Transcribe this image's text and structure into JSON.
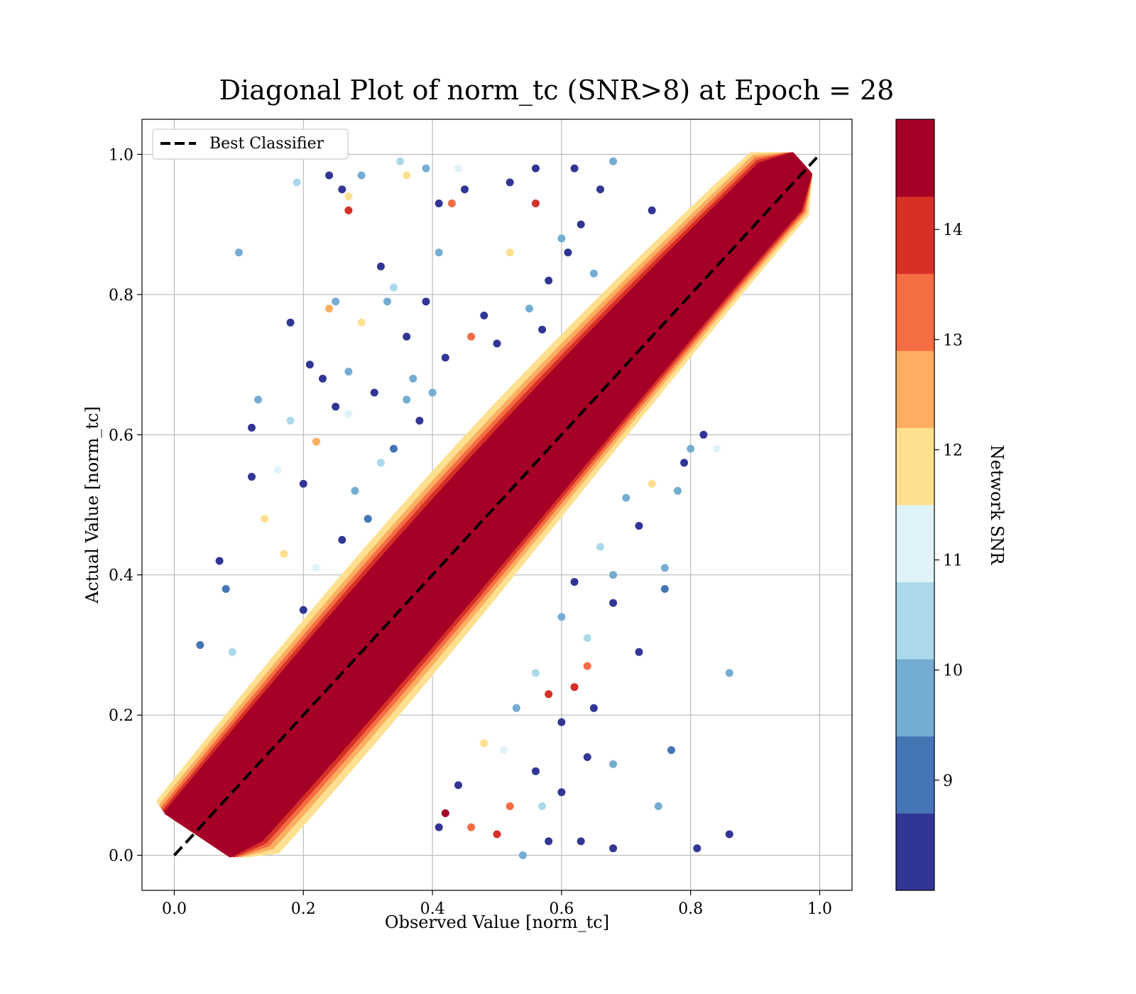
{
  "chart_data": {
    "type": "scatter",
    "title": "Diagonal Plot of norm_tc (SNR>8) at Epoch = 28",
    "xlabel": "Observed Value [norm_tc]",
    "ylabel": "Actual Value [norm_tc]",
    "xlim": [
      -0.05,
      1.05
    ],
    "ylim": [
      -0.05,
      1.05
    ],
    "xticks": [
      "0.0",
      "0.2",
      "0.4",
      "0.6",
      "0.8",
      "1.0"
    ],
    "yticks": [
      "0.0",
      "0.2",
      "0.4",
      "0.6",
      "0.8",
      "1.0"
    ],
    "xtick_values": [
      0.0,
      0.2,
      0.4,
      0.6,
      0.8,
      1.0
    ],
    "ytick_values": [
      0.0,
      0.2,
      0.4,
      0.6,
      0.8,
      1.0
    ],
    "grid": true,
    "legend": {
      "position": "top-left",
      "entries": [
        "Best Classifier"
      ]
    },
    "reference_line": {
      "name": "Best Classifier",
      "style": "dashed",
      "color": "#000000",
      "from": [
        0,
        0
      ],
      "to": [
        1,
        1
      ]
    },
    "colorbar": {
      "label": "Network SNR",
      "range": [
        8.0,
        15.0
      ],
      "bins": 10,
      "ticks": [
        "9",
        "10",
        "11",
        "12",
        "13",
        "14"
      ],
      "tick_values": [
        9,
        10,
        11,
        12,
        13,
        14
      ],
      "colors": [
        "#313695",
        "#4575b4",
        "#74add1",
        "#abd9e9",
        "#e0f3f8",
        "#fee090",
        "#fdae61",
        "#f46d43",
        "#d73027",
        "#a50026"
      ]
    },
    "points": [
      [
        0.1,
        0.86,
        9.9
      ],
      [
        0.19,
        0.96,
        10.3
      ],
      [
        0.24,
        0.97,
        8.2
      ],
      [
        0.26,
        0.95,
        8.3
      ],
      [
        0.27,
        0.92,
        14.2
      ],
      [
        0.27,
        0.94,
        12.2
      ],
      [
        0.29,
        0.97,
        10.0
      ],
      [
        0.32,
        0.84,
        8.3
      ],
      [
        0.35,
        0.99,
        10.6
      ],
      [
        0.39,
        0.98,
        9.8
      ],
      [
        0.41,
        0.93,
        8.2
      ],
      [
        0.43,
        0.93,
        13.6
      ],
      [
        0.45,
        0.95,
        8.3
      ],
      [
        0.52,
        0.96,
        8.5
      ],
      [
        0.56,
        0.98,
        8.2
      ],
      [
        0.62,
        0.98,
        8.4
      ],
      [
        0.68,
        0.99,
        9.5
      ],
      [
        0.74,
        0.92,
        8.3
      ],
      [
        0.12,
        0.61,
        8.3
      ],
      [
        0.12,
        0.54,
        8.2
      ],
      [
        0.14,
        0.48,
        11.8
      ],
      [
        0.16,
        0.55,
        11.0
      ],
      [
        0.18,
        0.76,
        8.3
      ],
      [
        0.18,
        0.62,
        10.5
      ],
      [
        0.21,
        0.7,
        8.3
      ],
      [
        0.23,
        0.68,
        8.2
      ],
      [
        0.24,
        0.78,
        12.5
      ],
      [
        0.25,
        0.79,
        9.4
      ],
      [
        0.27,
        0.69,
        9.6
      ],
      [
        0.27,
        0.63,
        10.8
      ],
      [
        0.29,
        0.76,
        11.8
      ],
      [
        0.31,
        0.66,
        8.4
      ],
      [
        0.33,
        0.79,
        9.5
      ],
      [
        0.34,
        0.81,
        10.3
      ],
      [
        0.36,
        0.74,
        8.2
      ],
      [
        0.37,
        0.68,
        9.7
      ],
      [
        0.39,
        0.79,
        8.2
      ],
      [
        0.41,
        0.86,
        9.4
      ],
      [
        0.42,
        0.71,
        8.2
      ],
      [
        0.07,
        0.42,
        8.3
      ],
      [
        0.08,
        0.38,
        9.2
      ],
      [
        0.09,
        0.29,
        10.2
      ],
      [
        0.13,
        0.65,
        9.4
      ],
      [
        0.17,
        0.43,
        12.0
      ],
      [
        0.2,
        0.53,
        8.3
      ],
      [
        0.22,
        0.59,
        12.8
      ],
      [
        0.25,
        0.64,
        8.2
      ],
      [
        0.04,
        0.3,
        9.1
      ],
      [
        0.6,
        0.34,
        9.6
      ],
      [
        0.62,
        0.39,
        8.4
      ],
      [
        0.64,
        0.31,
        10.7
      ],
      [
        0.64,
        0.27,
        13.5
      ],
      [
        0.65,
        0.21,
        8.3
      ],
      [
        0.68,
        0.4,
        9.6
      ],
      [
        0.72,
        0.29,
        8.2
      ],
      [
        0.76,
        0.41,
        9.8
      ],
      [
        0.76,
        0.38,
        9.1
      ],
      [
        0.86,
        0.26,
        9.4
      ],
      [
        0.77,
        0.15,
        9.3
      ],
      [
        0.68,
        0.13,
        9.7
      ],
      [
        0.64,
        0.14,
        8.3
      ],
      [
        0.6,
        0.09,
        8.2
      ],
      [
        0.6,
        0.19,
        8.3
      ],
      [
        0.56,
        0.12,
        8.3
      ],
      [
        0.53,
        0.21,
        9.8
      ],
      [
        0.51,
        0.15,
        10.8
      ],
      [
        0.48,
        0.16,
        12.0
      ],
      [
        0.52,
        0.07,
        13.4
      ],
      [
        0.5,
        0.03,
        14.0
      ],
      [
        0.46,
        0.04,
        13.1
      ],
      [
        0.54,
        0.0,
        9.5
      ],
      [
        0.63,
        0.02,
        8.3
      ],
      [
        0.68,
        0.01,
        8.2
      ],
      [
        0.75,
        0.07,
        9.6
      ],
      [
        0.81,
        0.01,
        8.2
      ],
      [
        0.86,
        0.03,
        8.3
      ],
      [
        0.41,
        0.04,
        8.4
      ],
      [
        0.42,
        0.06,
        14.8
      ],
      [
        0.44,
        0.1,
        8.2
      ],
      [
        0.58,
        0.02,
        8.2
      ],
      [
        0.57,
        0.07,
        10.3
      ],
      [
        0.36,
        0.97,
        11.5
      ],
      [
        0.44,
        0.98,
        11.3
      ],
      [
        0.48,
        0.77,
        8.3
      ],
      [
        0.5,
        0.73,
        8.2
      ],
      [
        0.46,
        0.74,
        13.0
      ],
      [
        0.55,
        0.78,
        9.5
      ],
      [
        0.57,
        0.75,
        8.2
      ],
      [
        0.58,
        0.82,
        8.3
      ],
      [
        0.52,
        0.86,
        11.6
      ],
      [
        0.6,
        0.88,
        9.6
      ],
      [
        0.61,
        0.86,
        8.3
      ],
      [
        0.63,
        0.9,
        8.2
      ],
      [
        0.65,
        0.83,
        10.1
      ],
      [
        0.56,
        0.93,
        14.0
      ],
      [
        0.66,
        0.95,
        8.3
      ],
      [
        0.34,
        0.58,
        9.2
      ],
      [
        0.32,
        0.56,
        10.6
      ],
      [
        0.3,
        0.48,
        9.3
      ],
      [
        0.28,
        0.52,
        10.0
      ],
      [
        0.26,
        0.45,
        8.3
      ],
      [
        0.22,
        0.41,
        10.8
      ],
      [
        0.2,
        0.35,
        8.3
      ],
      [
        0.36,
        0.65,
        9.8
      ],
      [
        0.4,
        0.66,
        10.1
      ],
      [
        0.38,
        0.62,
        8.2
      ],
      [
        0.7,
        0.51,
        9.4
      ],
      [
        0.72,
        0.47,
        8.2
      ],
      [
        0.74,
        0.53,
        11.9
      ],
      [
        0.78,
        0.52,
        9.5
      ],
      [
        0.8,
        0.58,
        9.7
      ],
      [
        0.82,
        0.6,
        8.3
      ],
      [
        0.84,
        0.58,
        11.0
      ],
      [
        0.79,
        0.56,
        8.2
      ],
      [
        0.66,
        0.44,
        10.2
      ],
      [
        0.68,
        0.36,
        8.3
      ],
      [
        0.62,
        0.24,
        13.8
      ],
      [
        0.56,
        0.26,
        10.6
      ],
      [
        0.58,
        0.23,
        14.2
      ]
    ]
  }
}
